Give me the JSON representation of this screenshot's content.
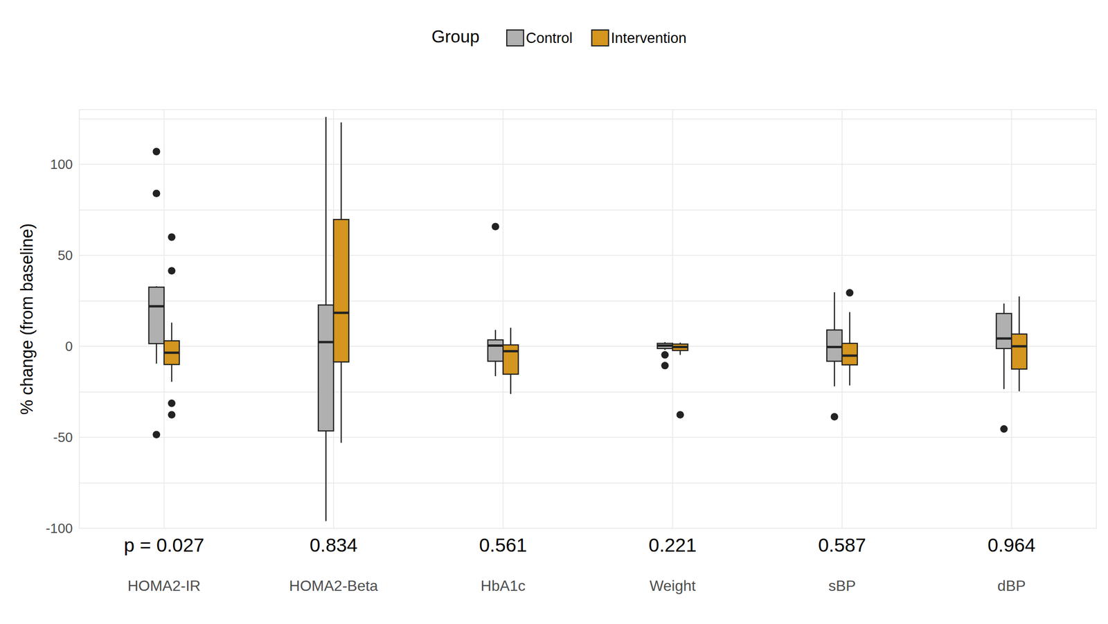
{
  "chart_data": {
    "type": "boxplot",
    "ylabel": "% change (from baseline)",
    "legend_title": "Group",
    "legend": "top",
    "grid": true,
    "categories": [
      "HOMA2-IR",
      "HOMA2-Beta",
      "HbA1c",
      "Weight",
      "sBP",
      "dBP"
    ],
    "annotations": [
      "p = 0.027",
      "0.834",
      "0.561",
      "0.221",
      "0.587",
      "0.964"
    ],
    "ylim": [
      -100,
      130
    ],
    "yticks": [
      -100,
      -50,
      0,
      50,
      100
    ],
    "series": [
      {
        "name": "Control",
        "color": "#b0b0b0",
        "boxes": [
          [
            -9.5,
            1.5,
            22,
            32.5,
            33
          ],
          [
            -96,
            -46.5,
            2.3,
            22.7,
            126
          ],
          [
            -16.4,
            -8.2,
            0.4,
            3.5,
            9
          ],
          [
            -2,
            -1.2,
            0.4,
            1.6,
            2.3
          ],
          [
            -22,
            -8.2,
            -0.4,
            9,
            29.7
          ],
          [
            -23.5,
            -1.2,
            4.3,
            18,
            23.5
          ]
        ],
        "outliers": [
          [
            107,
            84,
            -48.5
          ],
          [],
          [
            65.8
          ],
          [
            -4.7,
            -10.6
          ],
          [
            -38.7
          ],
          [
            -45.4
          ]
        ]
      },
      {
        "name": "Intervention",
        "color": "#d4961e",
        "boxes": [
          [
            -19.5,
            -10,
            -3.5,
            3,
            13
          ],
          [
            -53,
            -8.6,
            18.4,
            69.7,
            123
          ],
          [
            -26.2,
            -15.3,
            -2.7,
            0.8,
            10.2
          ],
          [
            -4.7,
            -2.3,
            -0.4,
            1.2,
            2
          ],
          [
            -21.5,
            -10.2,
            -5.1,
            1.6,
            18.8
          ],
          [
            -24.7,
            -12.5,
            0,
            6.7,
            27.4
          ]
        ],
        "outliers": [
          [
            60,
            41.5,
            -31.3,
            -37.6
          ],
          [],
          [],
          [
            -37.6
          ],
          [
            29.4
          ],
          []
        ]
      }
    ]
  }
}
